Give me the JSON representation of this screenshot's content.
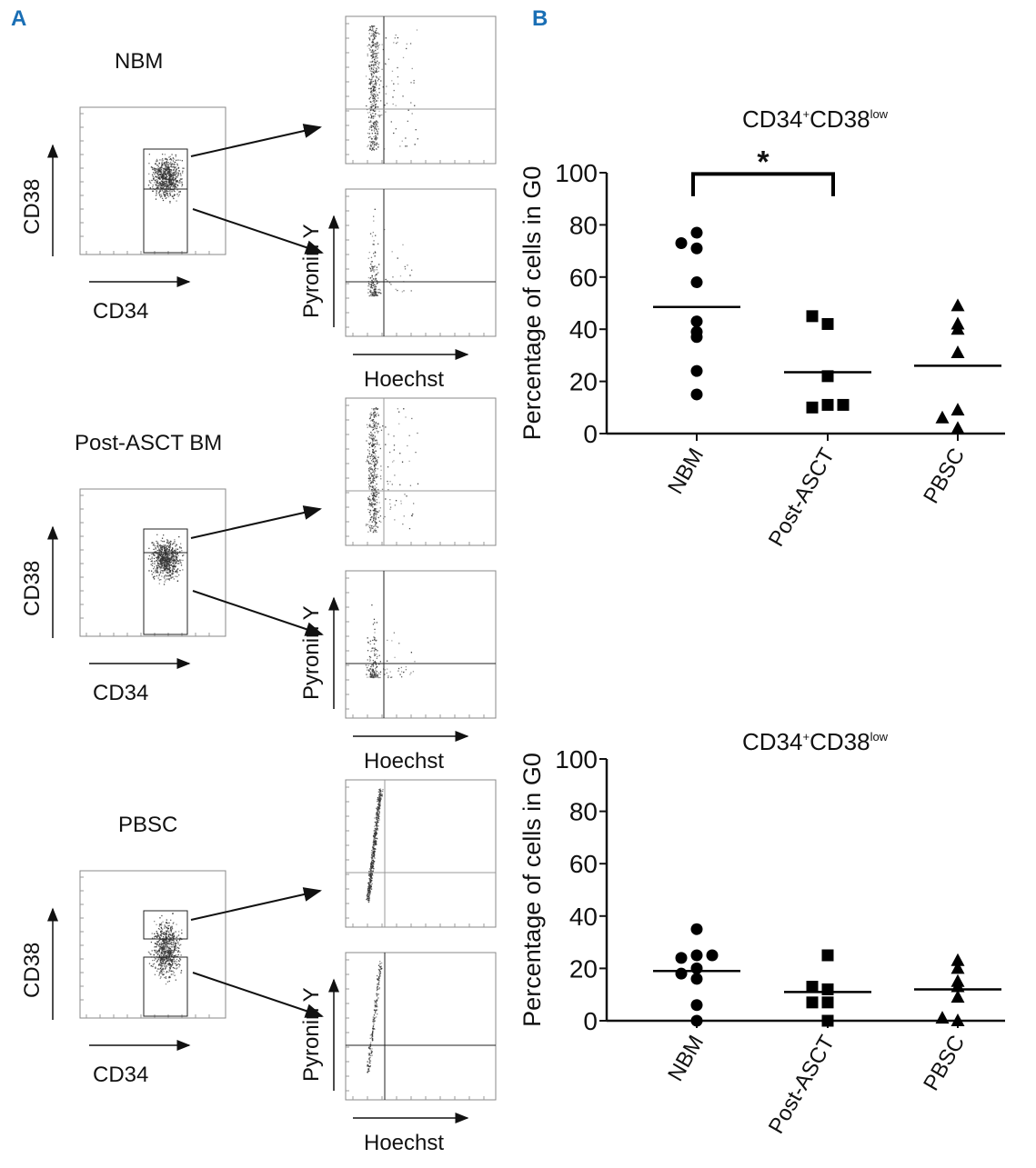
{
  "panel_a": {
    "label": "A",
    "samples": [
      {
        "title": "NBM"
      },
      {
        "title": "Post-ASCT BM"
      },
      {
        "title": "PBSC"
      }
    ],
    "gate_y_axis": "CD38",
    "gate_x_axis": "CD34",
    "cycle_y_axis": "Pyronin Y",
    "cycle_x_axis": "Hoechst"
  },
  "panel_b": {
    "label": "B"
  },
  "chart_data": [
    {
      "type": "scatter",
      "title_main": "CD34",
      "title_sup1": "+",
      "title_main2": "CD38",
      "title_sup2": "low",
      "ylabel": "Percentage of cells in G0",
      "ylim": [
        0,
        100
      ],
      "yticks": [
        "0",
        "20",
        "40",
        "60",
        "80",
        "100"
      ],
      "categories": [
        "NBM",
        "Post-ASCT",
        "PBSC"
      ],
      "series": [
        {
          "name": "NBM",
          "marker": "circle",
          "values": [
            77,
            71,
            73,
            58,
            43,
            37,
            39,
            24,
            15
          ],
          "mean": 48.5
        },
        {
          "name": "Post-ASCT",
          "marker": "square",
          "values": [
            42,
            45,
            22,
            11,
            10,
            11
          ],
          "mean": 23.5
        },
        {
          "name": "PBSC",
          "marker": "triangle",
          "values": [
            49,
            42,
            40,
            31,
            9,
            6,
            2
          ],
          "mean": 26
        }
      ],
      "significance": {
        "from": "NBM",
        "to": "Post-ASCT",
        "label": "*"
      }
    },
    {
      "type": "scatter",
      "title_main": "CD34",
      "title_sup1": "+",
      "title_main2": "CD38",
      "title_sup2": "low",
      "ylabel": "Percentage of cells in G0",
      "ylim": [
        0,
        100
      ],
      "yticks": [
        "0",
        "20",
        "40",
        "60",
        "80",
        "100"
      ],
      "categories": [
        "NBM",
        "Post-ASCT",
        "PBSC"
      ],
      "series": [
        {
          "name": "NBM",
          "marker": "circle",
          "values": [
            35,
            25,
            24,
            25,
            20,
            18,
            16,
            6,
            0
          ],
          "mean": 19
        },
        {
          "name": "Post-ASCT",
          "marker": "square",
          "values": [
            25,
            12,
            13,
            7,
            7,
            0
          ],
          "mean": 11
        },
        {
          "name": "PBSC",
          "marker": "triangle",
          "values": [
            23,
            20,
            13,
            15,
            9,
            0,
            1
          ],
          "mean": 12
        }
      ]
    }
  ]
}
